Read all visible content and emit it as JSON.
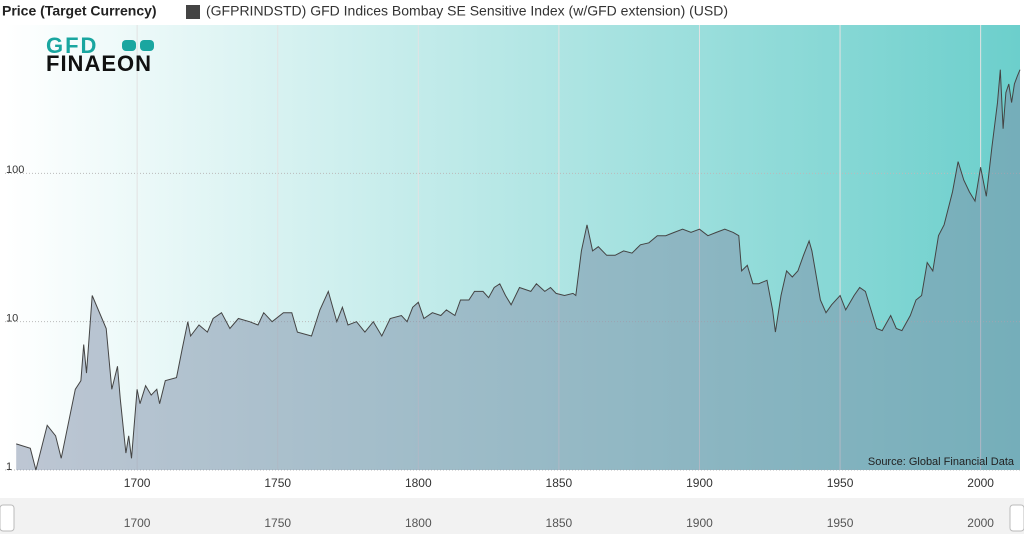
{
  "chart_data": {
    "type": "area",
    "title": "Price (Target Currency)",
    "source": "Source: Global Financial Data",
    "logo": {
      "line1": "GFD",
      "line2": "FINAEON"
    },
    "yscale": "log",
    "grid": true,
    "xlim": [
      1653,
      2014
    ],
    "ylim": [
      1,
      1000
    ],
    "xticks": [
      1700,
      1750,
      1800,
      1850,
      1900,
      1950,
      2000
    ],
    "yticks": [
      1,
      10,
      100
    ],
    "x": [
      1657,
      1662,
      1664,
      1668,
      1671,
      1673,
      1678,
      1680,
      1681,
      1682,
      1684,
      1689,
      1691,
      1693,
      1694,
      1696,
      1697,
      1698,
      1700,
      1701,
      1703,
      1705,
      1707,
      1708,
      1710,
      1714,
      1716,
      1718,
      1719,
      1722,
      1725,
      1727,
      1730,
      1733,
      1736,
      1740,
      1743,
      1745,
      1748,
      1752,
      1755,
      1757,
      1762,
      1765,
      1768,
      1771,
      1773,
      1775,
      1778,
      1781,
      1784,
      1787,
      1790,
      1794,
      1796,
      1798,
      1800,
      1802,
      1805,
      1808,
      1810,
      1813,
      1815,
      1818,
      1820,
      1823,
      1825,
      1827,
      1829,
      1831,
      1833,
      1836,
      1840,
      1842,
      1845,
      1847,
      1849,
      1852,
      1855,
      1856,
      1858,
      1860,
      1862,
      1864,
      1867,
      1870,
      1873,
      1876,
      1879,
      1882,
      1885,
      1888,
      1891,
      1894,
      1897,
      1900,
      1903,
      1906,
      1909,
      1912,
      1914,
      1915,
      1917,
      1919,
      1921,
      1924,
      1926,
      1927,
      1929,
      1931,
      1933,
      1935,
      1937,
      1939,
      1940,
      1943,
      1945,
      1947,
      1950,
      1952,
      1955,
      1957,
      1959,
      1961,
      1963,
      1965,
      1968,
      1970,
      1972,
      1975,
      1977,
      1979,
      1981,
      1983,
      1985,
      1987,
      1990,
      1992,
      1994,
      1996,
      1998,
      2000,
      2002,
      2004,
      2006,
      2007,
      2008,
      2009,
      2010,
      2011,
      2012,
      2013,
      2014
    ],
    "series": [
      {
        "name": "(GFPRINDSTD) GFD Indices Bombay SE Sensitive Index (w/GFD extension) (USD)",
        "color": "#444444",
        "values": [
          1.5,
          1.4,
          1.0,
          2.0,
          1.7,
          1.2,
          3.5,
          4.0,
          7,
          4.5,
          15,
          9,
          3.5,
          5,
          3,
          1.3,
          1.7,
          1.2,
          3.5,
          2.8,
          3.7,
          3.2,
          3.5,
          2.8,
          4,
          4.2,
          6.5,
          10,
          8,
          9.5,
          8.5,
          10.5,
          11.5,
          9,
          10.5,
          10,
          9.5,
          11.5,
          10,
          11.5,
          11.5,
          8.5,
          8,
          12,
          16,
          10,
          12.5,
          9.5,
          10,
          8.5,
          10,
          8,
          10.5,
          11,
          10,
          12.5,
          13.5,
          10.5,
          11.5,
          11,
          12,
          11,
          14,
          14,
          16,
          16,
          14.5,
          17,
          18,
          15,
          13,
          17,
          16,
          18,
          16,
          17,
          15.5,
          15,
          15.5,
          15,
          30,
          45,
          30,
          32,
          28,
          28,
          30,
          29,
          33,
          34,
          38,
          38,
          40,
          42,
          40,
          42,
          38,
          40,
          42,
          40,
          38,
          22,
          24,
          18,
          18,
          19,
          12,
          8.5,
          15,
          22,
          20,
          22,
          28,
          35,
          30,
          14,
          11.5,
          13,
          15,
          12,
          15,
          17,
          16,
          12,
          9,
          8.7,
          11,
          9,
          8.7,
          11,
          14,
          15,
          25,
          22,
          38,
          45,
          75,
          120,
          90,
          75,
          65,
          110,
          70,
          150,
          300,
          500,
          200,
          350,
          400,
          300,
          400,
          450,
          500
        ]
      }
    ]
  }
}
